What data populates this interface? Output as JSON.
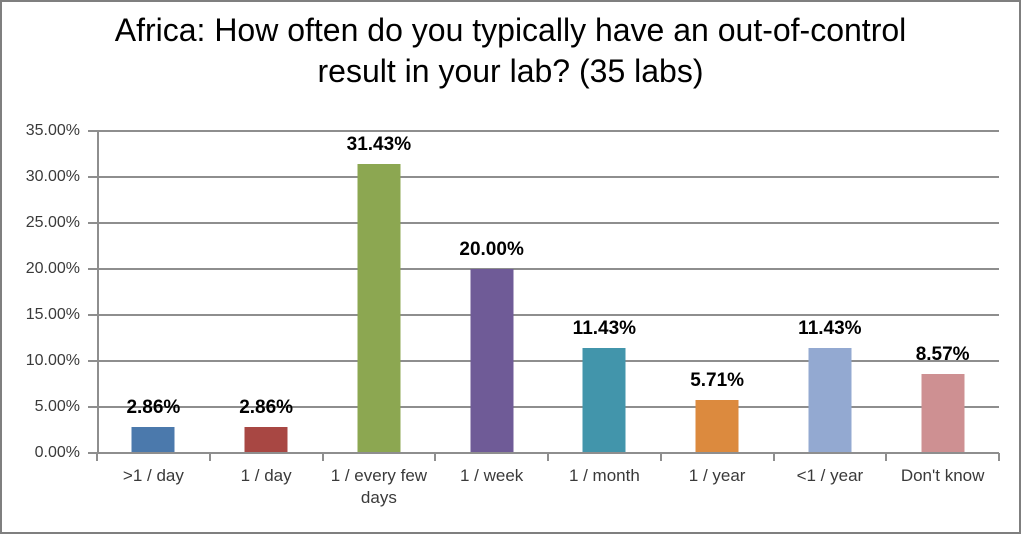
{
  "chart_data": {
    "type": "bar",
    "title": "Africa: How often do you typically have an out-of-control result in your lab? (35 labs)",
    "categories": [
      ">1 / day",
      "1 / day",
      "1 / every few days",
      "1 / week",
      "1 / month",
      "1 / year",
      "<1 / year",
      "Don't know"
    ],
    "values": [
      2.86,
      2.86,
      31.43,
      20.0,
      11.43,
      5.71,
      11.43,
      8.57
    ],
    "data_labels": [
      "2.86%",
      "2.86%",
      "31.43%",
      "20.00%",
      "11.43%",
      "5.71%",
      "11.43%",
      "8.57%"
    ],
    "bar_colors": [
      "#4b79ac",
      "#a84743",
      "#8ca751",
      "#6f5b97",
      "#4295ab",
      "#dc8a3e",
      "#93a9d1",
      "#ce9092"
    ],
    "xlabel": "",
    "ylabel": "",
    "ylim": [
      0,
      35
    ],
    "y_tick_step": 5,
    "y_ticks": [
      "0.00%",
      "5.00%",
      "10.00%",
      "15.00%",
      "20.00%",
      "25.00%",
      "30.00%",
      "35.00%"
    ],
    "grid": true,
    "legend": false
  },
  "colors": {
    "background": "#ffffff",
    "frame_border": "#7f7f7f",
    "gridline": "#8e8e8e",
    "axis_line": "#8e8e8e",
    "title_text": "#000000",
    "tick_label_text": "#3a3a3a",
    "data_label_text": "#000000"
  }
}
